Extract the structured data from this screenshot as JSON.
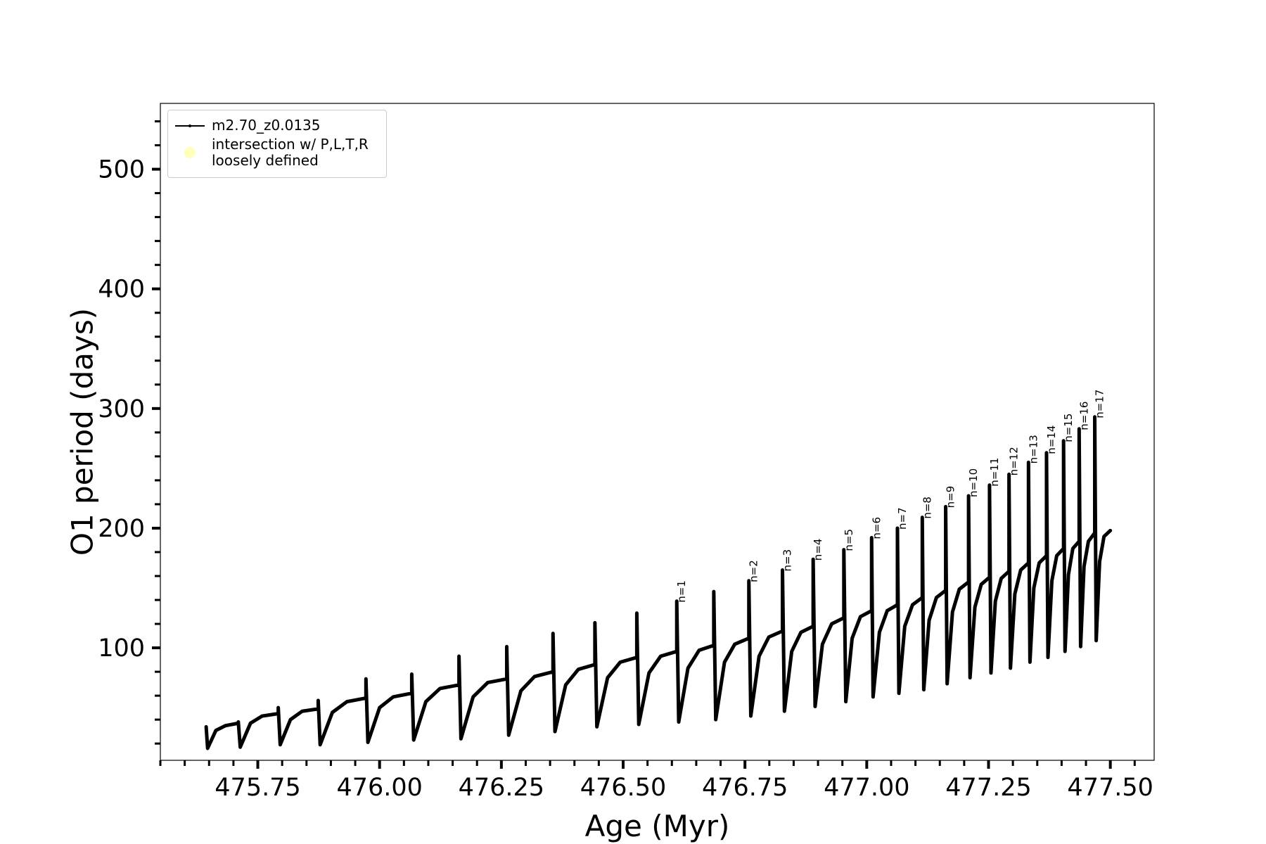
{
  "chart_data": {
    "type": "line",
    "xlabel": "Age (Myr)",
    "ylabel": "O1 period (days)",
    "xlim": [
      475.55,
      477.59
    ],
    "ylim": [
      6,
      555
    ],
    "xticks": [
      475.75,
      {
        "value": 476,
        "label": "476.00"
      },
      476.25,
      {
        "value": 476.5,
        "label": "476.50"
      },
      476.75,
      {
        "value": 477,
        "label": "477.00"
      },
      477.25,
      {
        "value": 477.5,
        "label": "477.50"
      }
    ],
    "yticks": [
      100,
      200,
      300,
      400,
      500
    ],
    "xminorticks": [
      475.55,
      475.6,
      475.65,
      475.7,
      475.8,
      475.85,
      475.9,
      475.95,
      476.05,
      476.1,
      476.15,
      476.2,
      476.3,
      476.35,
      476.4,
      476.45,
      476.55,
      476.6,
      476.65,
      476.7,
      476.8,
      476.85,
      476.9,
      476.95,
      477.05,
      477.1,
      477.15,
      477.2,
      477.3,
      477.35,
      477.4,
      477.45,
      477.55
    ],
    "yminorticks": [
      20,
      40,
      60,
      80,
      120,
      140,
      160,
      180,
      220,
      240,
      260,
      280,
      320,
      340,
      360,
      380,
      420,
      440,
      460,
      480,
      520,
      540
    ],
    "legend": "upper left",
    "series": [
      {
        "name": "m2.70_z0.0135",
        "color": "#000000",
        "x": [
          475.644,
          475.647,
          475.664,
          475.684,
          475.71,
          475.71,
          475.714,
          475.735,
          475.759,
          475.792,
          475.792,
          475.796,
          475.817,
          475.841,
          475.874,
          475.874,
          475.878,
          475.903,
          475.933,
          475.972,
          475.972,
          475.976,
          476.0,
          476.028,
          476.066,
          476.066,
          476.07,
          476.095,
          476.124,
          476.163,
          476.163,
          476.167,
          476.192,
          476.222,
          476.261,
          476.261,
          476.265,
          476.29,
          476.318,
          476.356,
          476.356,
          476.36,
          476.382,
          476.408,
          476.442,
          476.442,
          476.446,
          476.468,
          476.494,
          476.528,
          476.528,
          476.532,
          476.553,
          476.577,
          476.61,
          476.61,
          476.614,
          476.633,
          476.656,
          476.686,
          476.686,
          476.69,
          476.708,
          476.729,
          476.758,
          476.758,
          476.762,
          476.779,
          476.799,
          476.827,
          476.827,
          476.831,
          476.846,
          476.865,
          476.89,
          476.89,
          476.894,
          476.909,
          476.928,
          476.953,
          476.953,
          476.957,
          476.97,
          476.987,
          477.01,
          477.01,
          477.013,
          477.026,
          477.042,
          477.063,
          477.063,
          477.066,
          477.078,
          477.094,
          477.114,
          477.114,
          477.117,
          477.128,
          477.143,
          477.162,
          477.162,
          477.165,
          477.176,
          477.19,
          477.209,
          477.209,
          477.212,
          477.222,
          477.235,
          477.252,
          477.252,
          477.255,
          477.264,
          477.276,
          477.292,
          477.292,
          477.295,
          477.304,
          477.316,
          477.332,
          477.332,
          477.335,
          477.343,
          477.354,
          477.369,
          477.369,
          477.372,
          477.38,
          477.39,
          477.404,
          477.404,
          477.407,
          477.414,
          477.423,
          477.436,
          477.436,
          477.439,
          477.446,
          477.455,
          477.468,
          477.468,
          477.471,
          477.478,
          477.487,
          477.5
        ],
        "y": [
          34,
          16,
          31,
          35,
          37,
          38,
          17,
          37,
          43,
          45,
          50,
          19,
          40,
          47,
          49,
          56,
          19,
          46,
          55,
          58,
          74,
          21,
          50,
          59,
          62,
          78,
          23,
          55,
          66,
          69,
          93,
          24,
          59,
          71,
          74,
          101,
          27,
          64,
          76,
          80,
          112,
          30,
          69,
          82,
          86,
          121,
          34,
          75,
          88,
          92,
          129,
          36,
          79,
          93,
          97,
          139,
          38,
          83,
          98,
          102,
          147,
          40,
          88,
          103,
          108,
          156,
          43,
          93,
          109,
          114,
          165,
          47,
          97,
          113,
          118,
          174,
          51,
          103,
          120,
          125,
          182,
          55,
          108,
          126,
          131,
          192,
          59,
          113,
          131,
          136,
          200,
          62,
          118,
          136,
          142,
          209,
          65,
          123,
          142,
          148,
          218,
          70,
          130,
          149,
          155,
          227,
          75,
          134,
          153,
          159,
          236,
          79,
          139,
          158,
          164,
          245,
          83,
          145,
          165,
          171,
          255,
          88,
          150,
          171,
          177,
          263,
          92,
          156,
          177,
          183,
          273,
          97,
          161,
          183,
          189,
          283,
          101,
          168,
          189,
          196,
          293,
          106,
          172,
          193,
          198
        ]
      },
      {
        "name": "intersection w/ P,L,T,R\nloosely defined",
        "type": "scatter",
        "color": "#ffffa8",
        "x": [],
        "y": []
      }
    ],
    "annotations": [
      {
        "text": "n=1",
        "x": 476.61,
        "y": 139
      },
      {
        "text": "n=2",
        "x": 476.758,
        "y": 156
      },
      {
        "text": "n=3",
        "x": 476.827,
        "y": 165
      },
      {
        "text": "n=4",
        "x": 476.89,
        "y": 174
      },
      {
        "text": "n=5",
        "x": 476.953,
        "y": 182
      },
      {
        "text": "n=6",
        "x": 477.01,
        "y": 192
      },
      {
        "text": "n=7",
        "x": 477.063,
        "y": 200
      },
      {
        "text": "n=8",
        "x": 477.114,
        "y": 209
      },
      {
        "text": "n=9",
        "x": 477.162,
        "y": 218
      },
      {
        "text": "n=10",
        "x": 477.209,
        "y": 227
      },
      {
        "text": "n=11",
        "x": 477.252,
        "y": 236
      },
      {
        "text": "n=12",
        "x": 477.292,
        "y": 245
      },
      {
        "text": "n=13",
        "x": 477.332,
        "y": 255
      },
      {
        "text": "n=14",
        "x": 477.369,
        "y": 263
      },
      {
        "text": "n=15",
        "x": 477.404,
        "y": 273
      },
      {
        "text": "n=16",
        "x": 477.436,
        "y": 283
      },
      {
        "text": "n=17",
        "x": 477.468,
        "y": 293
      }
    ]
  }
}
